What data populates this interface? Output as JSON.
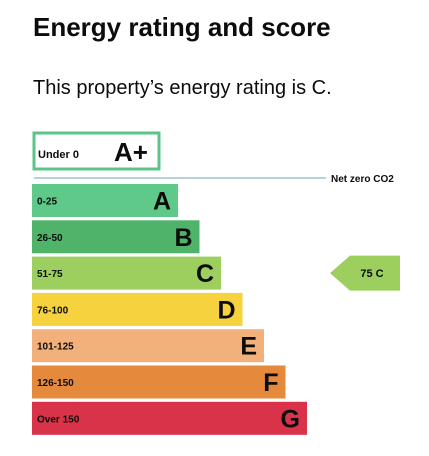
{
  "heading": {
    "title": "Energy rating and score",
    "summary": "This property’s energy rating is C."
  },
  "chart_data": {
    "type": "bar",
    "top_band": {
      "range": "Under 0",
      "letter": "A+",
      "color": "#5bc489"
    },
    "net_zero_label": "Net zero CO2",
    "net_zero_line_color": "#b7d2de",
    "bands": [
      {
        "range": "0-25",
        "letter": "A",
        "color": "#5fc98a"
      },
      {
        "range": "26-50",
        "letter": "B",
        "color": "#4fb46a"
      },
      {
        "range": "51-75",
        "letter": "C",
        "color": "#9ccf5e"
      },
      {
        "range": "76-100",
        "letter": "D",
        "color": "#f6d23f"
      },
      {
        "range": "101-125",
        "letter": "E",
        "color": "#f2b07a"
      },
      {
        "range": "126-150",
        "letter": "F",
        "color": "#e58a3c"
      },
      {
        "range": "Over 150",
        "letter": "G",
        "color": "#d9334a"
      }
    ],
    "current_rating": {
      "score": 75,
      "letter": "C",
      "color": "#9ccf5e"
    }
  }
}
